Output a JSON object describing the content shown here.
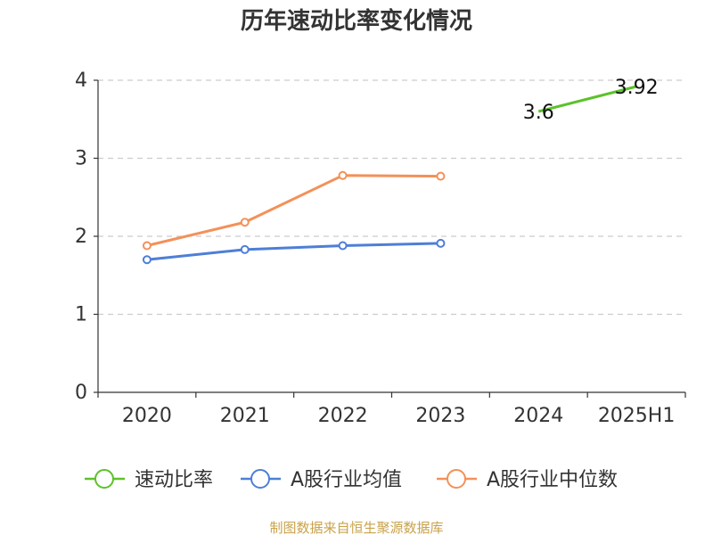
{
  "chart_data": {
    "type": "line",
    "title": "历年速动比率变化情况",
    "categories": [
      "2020",
      "2021",
      "2022",
      "2023",
      "2024",
      "2025H1"
    ],
    "ylim": [
      0,
      4
    ],
    "yticks": [
      0,
      1,
      2,
      3,
      4
    ],
    "grid": true,
    "legend_position": "bottom",
    "series": [
      {
        "name": "速动比率",
        "color": "#5cc22a",
        "values": [
          null,
          null,
          null,
          null,
          3.6,
          3.92
        ],
        "labels": [
          "",
          "",
          "",
          "",
          "3.6",
          "3.92"
        ],
        "markers": false
      },
      {
        "name": "A股行业均值",
        "color": "#4e7fd6",
        "values": [
          1.7,
          1.83,
          1.88,
          1.91,
          null,
          null
        ],
        "markers": true
      },
      {
        "name": "A股行业中位数",
        "color": "#f39159",
        "values": [
          1.88,
          2.18,
          2.78,
          2.77,
          null,
          null
        ],
        "markers": true
      }
    ],
    "source": "制图数据来自恒生聚源数据库"
  }
}
